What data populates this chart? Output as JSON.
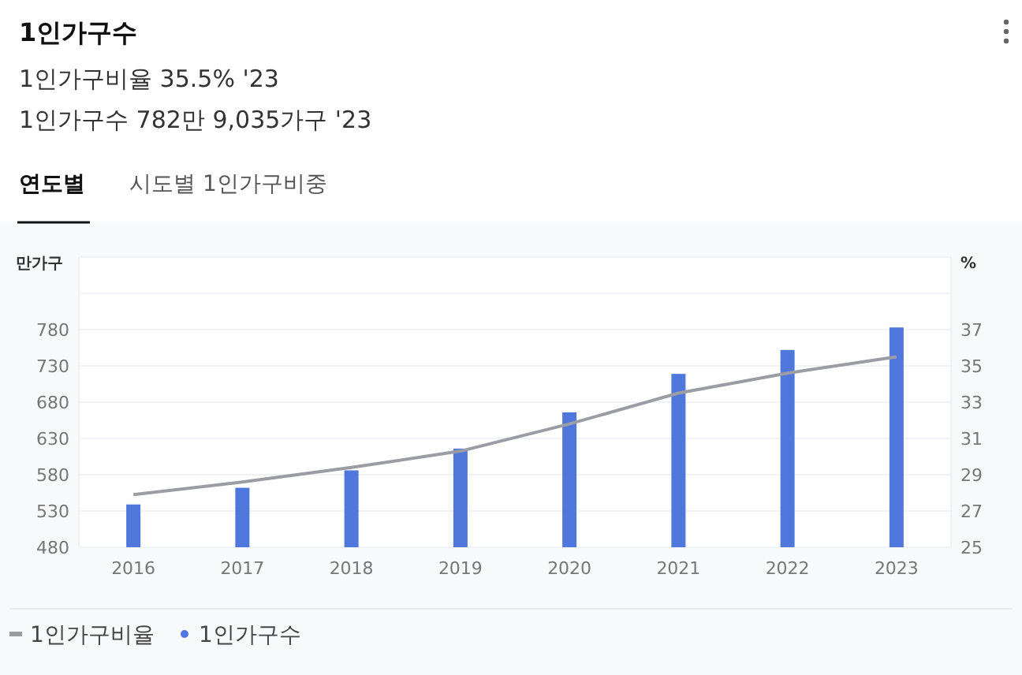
{
  "chart_data": {
    "type": "bar",
    "title": "1인가구수",
    "annotations": [
      "1인가구비율 35.5% '23",
      "1인가구수 782만 9,035가구 '23",
      "연도별",
      "시도별 1인가구비중"
    ],
    "ylabel": "만가구",
    "y2label": "%",
    "categories": [
      "2016",
      "2017",
      "2018",
      "2019",
      "2020",
      "2021",
      "2022",
      "2023"
    ],
    "series": [
      {
        "name": "1인가구비율",
        "type": "line",
        "axis": "y2",
        "color": "#9b9ca4",
        "values": [
          27.9,
          28.6,
          29.4,
          30.3,
          31.8,
          33.5,
          34.6,
          35.5
        ]
      },
      {
        "name": "1인가구수",
        "color": "#5078dc",
        "values": [
          539,
          562,
          586,
          616,
          666,
          719,
          752,
          783
        ]
      }
    ],
    "ylim": [
      480,
      880
    ],
    "yticks": [
      480,
      530,
      580,
      630,
      680,
      730,
      780,
      {
        "value": 830,
        "label": null
      },
      {
        "value": 880,
        "label": null
      }
    ],
    "y2lim": [
      25,
      41
    ],
    "y2ticks": [
      25,
      27,
      29,
      31,
      33,
      35,
      37,
      {
        "value": 39,
        "label": null
      },
      {
        "value": 41,
        "label": null
      }
    ],
    "grid": "y",
    "legend": "bottom left",
    "marker": "none",
    "line_style": "solid"
  }
}
